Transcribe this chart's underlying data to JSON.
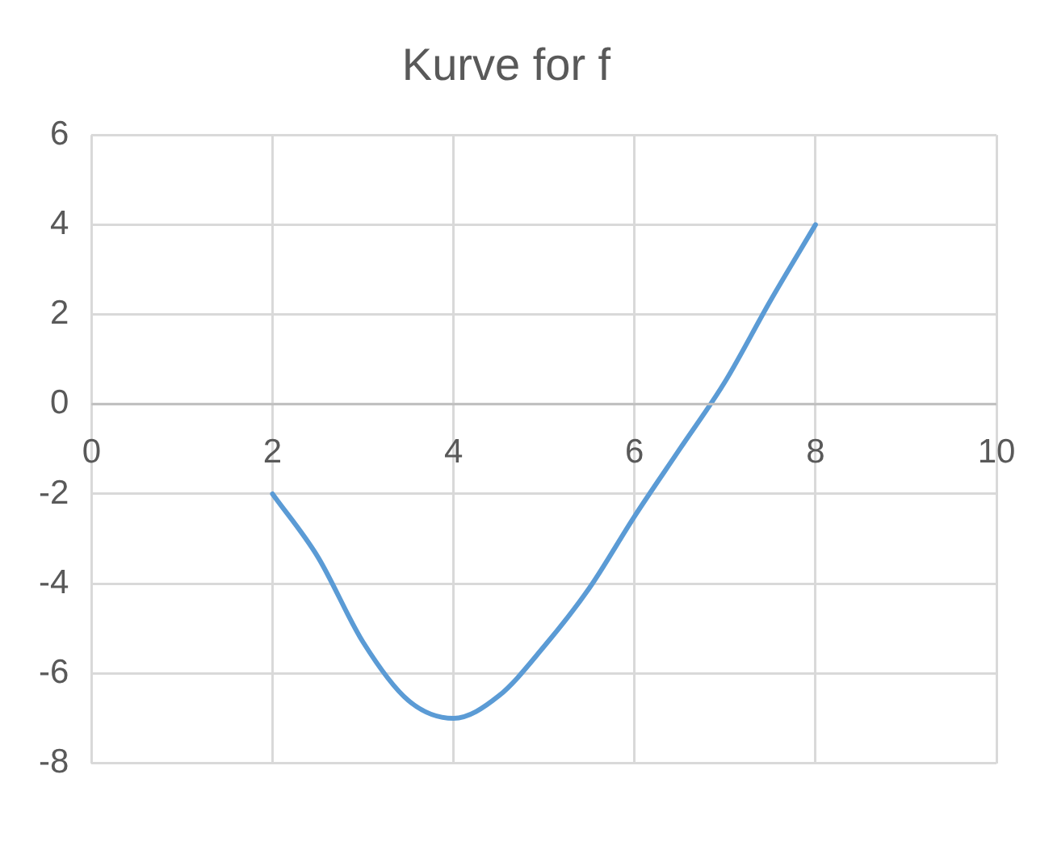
{
  "chart_data": {
    "type": "line",
    "title": "Kurve for f",
    "x": [
      2,
      2.5,
      3,
      3.5,
      4,
      4.5,
      5,
      5.5,
      6,
      6.5,
      7,
      7.5,
      8
    ],
    "series": [
      {
        "color": "#5b9bd5",
        "values": [
          -2,
          -3.4,
          -5.3,
          -6.6,
          -7,
          -6.5,
          -5.4,
          -4.1,
          -2.5,
          -1,
          0.5,
          2.3,
          4
        ]
      }
    ],
    "xlim": [
      0,
      10
    ],
    "xticks": [
      0,
      2,
      4,
      6,
      8,
      10
    ],
    "ylim": [
      -8,
      6
    ],
    "yticks": [
      -8,
      -6,
      -4,
      -2,
      0,
      2,
      4,
      6
    ],
    "grid": true,
    "legend": false,
    "marker": "none",
    "line_style": "solid"
  }
}
